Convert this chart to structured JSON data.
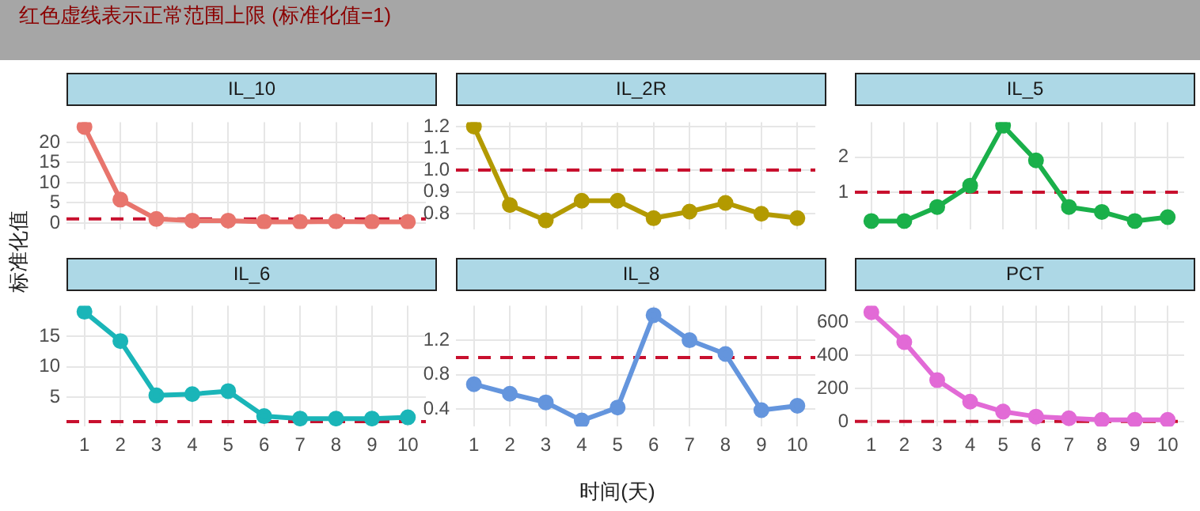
{
  "chart_data": [
    {
      "type": "line",
      "title": "IL_10",
      "annotations": [
        "红色虚线表示正常范围上限 (标准化值=1)"
      ],
      "ylabel": "标准化值",
      "categories": [
        "1",
        "2",
        "3",
        "4",
        "5",
        "6",
        "7",
        "8",
        "9",
        "10"
      ],
      "series": [
        {
          "color": "#e8756d",
          "values": [
            23.8,
            5.8,
            1.0,
            0.6,
            0.6,
            0.3,
            0.3,
            0.4,
            0.3,
            0.3
          ]
        }
      ],
      "ylim": [
        -1.5,
        25
      ],
      "yticks": [
        0,
        5,
        10,
        15,
        20
      ],
      "grid": true,
      "legend": false,
      "tick_labels": "y",
      "marker": "circle",
      "line_style": "solid",
      "ref_lines": [
        {
          "axis": "y",
          "value": 1,
          "color": "#c8102e",
          "line_style": "dashed"
        }
      ]
    },
    {
      "type": "line",
      "title": "IL_2R",
      "categories": [
        "1",
        "2",
        "3",
        "4",
        "5",
        "6",
        "7",
        "8",
        "9",
        "10"
      ],
      "series": [
        {
          "color": "#b39a00",
          "values": [
            1.2,
            0.84,
            0.77,
            0.86,
            0.86,
            0.78,
            0.81,
            0.85,
            0.8,
            0.78
          ]
        }
      ],
      "ylim": [
        0.73,
        1.22
      ],
      "yticks": [
        {
          "value": 0.8,
          "label": "0.8"
        },
        {
          "value": 0.9,
          "label": "0.9"
        },
        {
          "value": 1,
          "label": "1.0"
        },
        {
          "value": 1.1,
          "label": "1.1"
        },
        {
          "value": 1.2,
          "label": "1.2"
        }
      ],
      "grid": true,
      "legend": false,
      "tick_labels": "y",
      "marker": "circle",
      "line_style": "solid",
      "ref_lines": [
        {
          "axis": "y",
          "value": 1,
          "color": "#c8102e",
          "line_style": "dashed"
        }
      ]
    },
    {
      "type": "line",
      "title": "IL_5",
      "categories": [
        "1",
        "2",
        "3",
        "4",
        "5",
        "6",
        "7",
        "8",
        "9",
        "10"
      ],
      "series": [
        {
          "color": "#1ab04a",
          "values": [
            0.18,
            0.18,
            0.58,
            1.19,
            2.9,
            1.91,
            0.58,
            0.44,
            0.18,
            0.29
          ]
        }
      ],
      "ylim": [
        -0.05,
        3.0
      ],
      "yticks": [
        1,
        2
      ],
      "grid": true,
      "legend": false,
      "tick_labels": "y",
      "marker": "circle",
      "line_style": "solid",
      "ref_lines": [
        {
          "axis": "y",
          "value": 1,
          "color": "#c8102e",
          "line_style": "dashed"
        }
      ]
    },
    {
      "type": "line",
      "title": "IL_6",
      "categories": [
        "1",
        "2",
        "3",
        "4",
        "5",
        "6",
        "7",
        "8",
        "9",
        "10"
      ],
      "series": [
        {
          "color": "#1ab5b8",
          "values": [
            19,
            14.2,
            5.3,
            5.5,
            6,
            1.9,
            1.5,
            1.5,
            1.5,
            1.7
          ]
        }
      ],
      "ylim": [
        0.2,
        20
      ],
      "yticks": [
        5,
        10,
        15
      ],
      "grid": true,
      "legend": false,
      "marker": "circle",
      "line_style": "solid",
      "ref_lines": [
        {
          "axis": "y",
          "value": 1,
          "color": "#c8102e",
          "line_style": "dashed"
        }
      ]
    },
    {
      "type": "line",
      "title": "IL_8",
      "xlabel": "时间(天)",
      "categories": [
        "1",
        "2",
        "3",
        "4",
        "5",
        "6",
        "7",
        "8",
        "9",
        "10"
      ],
      "series": [
        {
          "color": "#6495dd",
          "values": [
            0.69,
            0.58,
            0.48,
            0.27,
            0.42,
            1.49,
            1.2,
            1.04,
            0.39,
            0.44
          ]
        }
      ],
      "ylim": [
        0.2,
        1.6
      ],
      "yticks": [
        0.4,
        0.8,
        1.2
      ],
      "grid": true,
      "legend": false,
      "marker": "circle",
      "line_style": "solid",
      "ref_lines": [
        {
          "axis": "y",
          "value": 1,
          "color": "#c8102e",
          "line_style": "dashed"
        }
      ]
    },
    {
      "type": "line",
      "title": "PCT",
      "categories": [
        "1",
        "2",
        "3",
        "4",
        "5",
        "6",
        "7",
        "8",
        "9",
        "10"
      ],
      "series": [
        {
          "color": "#e26ad6",
          "values": [
            660,
            480,
            250,
            120,
            60,
            30,
            20,
            10,
            10,
            10
          ]
        }
      ],
      "ylim": [
        -30,
        700
      ],
      "yticks": [
        0,
        200,
        400,
        600
      ],
      "grid": true,
      "legend": false,
      "marker": "circle",
      "line_style": "solid",
      "ref_lines": [
        {
          "axis": "y",
          "value": 1,
          "color": "#c8102e",
          "line_style": "dashed"
        }
      ]
    }
  ]
}
